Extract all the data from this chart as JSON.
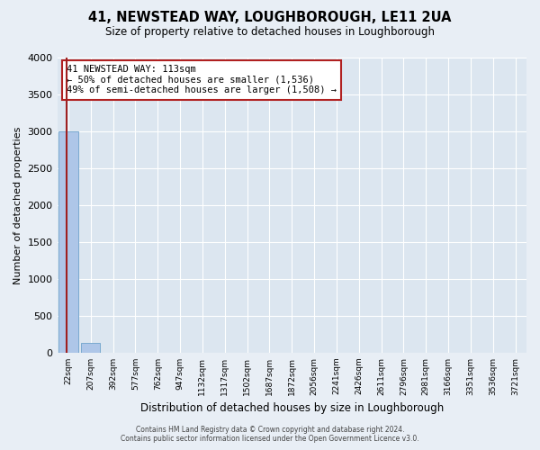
{
  "title": "41, NEWSTEAD WAY, LOUGHBOROUGH, LE11 2UA",
  "subtitle": "Size of property relative to detached houses in Loughborough",
  "xlabel": "Distribution of detached houses by size in Loughborough",
  "ylabel": "Number of detached properties",
  "bar_labels": [
    "22sqm",
    "207sqm",
    "392sqm",
    "577sqm",
    "762sqm",
    "947sqm",
    "1132sqm",
    "1317sqm",
    "1502sqm",
    "1687sqm",
    "1872sqm",
    "2056sqm",
    "2241sqm",
    "2426sqm",
    "2611sqm",
    "2796sqm",
    "2981sqm",
    "3166sqm",
    "3351sqm",
    "3536sqm",
    "3721sqm"
  ],
  "bar_values": [
    3000,
    130,
    0,
    0,
    0,
    0,
    0,
    0,
    0,
    0,
    0,
    0,
    0,
    0,
    0,
    0,
    0,
    0,
    0,
    0,
    0
  ],
  "bar_color": "#aec6e8",
  "bar_edge_color": "#7aaad0",
  "property_line_color": "#a02020",
  "ylim": [
    0,
    4000
  ],
  "yticks": [
    0,
    500,
    1000,
    1500,
    2000,
    2500,
    3000,
    3500,
    4000
  ],
  "annotation_title": "41 NEWSTEAD WAY: 113sqm",
  "annotation_line1": "← 50% of detached houses are smaller (1,536)",
  "annotation_line2": "49% of semi-detached houses are larger (1,508) →",
  "annotation_box_color": "#b02020",
  "footer_line1": "Contains HM Land Registry data © Crown copyright and database right 2024.",
  "footer_line2": "Contains public sector information licensed under the Open Government Licence v3.0.",
  "bg_color": "#e8eef5",
  "plot_bg_color": "#dce6f0",
  "grid_color": "#ffffff"
}
